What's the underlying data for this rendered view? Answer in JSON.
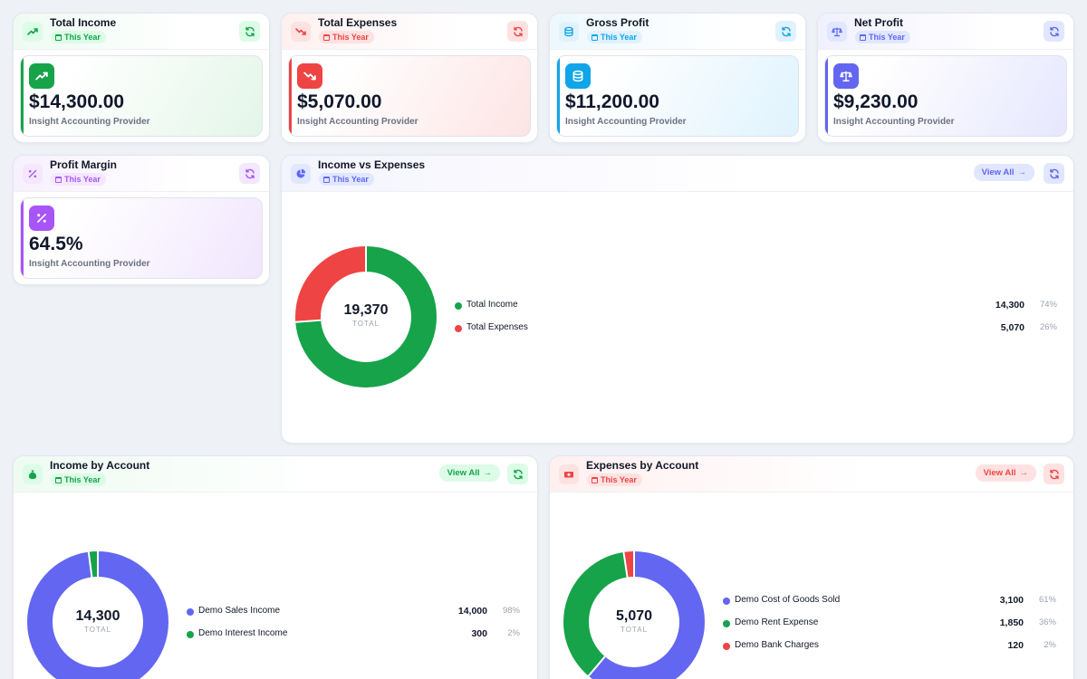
{
  "colors": {
    "green": "#16a34a",
    "red": "#ef4444",
    "blue": "#0ea5e9",
    "indigo": "#6366f1",
    "purple": "#a855f7"
  },
  "kpis": [
    {
      "title": "Total Income",
      "badge": "This Year",
      "value": "$14,300.00",
      "subtitle": "Insight Accounting Provider",
      "icon": "trending-up-icon"
    },
    {
      "title": "Total Expenses",
      "badge": "This Year",
      "value": "$5,070.00",
      "subtitle": "Insight Accounting Provider",
      "icon": "trending-down-icon"
    },
    {
      "title": "Gross Profit",
      "badge": "This Year",
      "value": "$11,200.00",
      "subtitle": "Insight Accounting Provider",
      "icon": "coins-icon"
    },
    {
      "title": "Net Profit",
      "badge": "This Year",
      "value": "$9,230.00",
      "subtitle": "Insight Accounting Provider",
      "icon": "scale-icon"
    },
    {
      "title": "Profit Margin",
      "badge": "This Year",
      "value": "64.5%",
      "subtitle": "Insight Accounting Provider",
      "icon": "percent-icon"
    }
  ],
  "income_vs_expenses": {
    "title": "Income vs Expenses",
    "badge": "This Year",
    "view_all": "View All",
    "icon": "pie-chart-icon",
    "total": "19,370",
    "total_label": "TOTAL",
    "items": [
      {
        "name": "Total Income",
        "value": "14,300",
        "pct": "74%",
        "amount": 14300,
        "color": "#16a34a"
      },
      {
        "name": "Total Expenses",
        "value": "5,070",
        "pct": "26%",
        "amount": 5070,
        "color": "#ef4444"
      }
    ]
  },
  "income_by_account": {
    "title": "Income by Account",
    "badge": "This Year",
    "view_all": "View All",
    "icon": "money-bag-icon",
    "total": "14,300",
    "total_label": "TOTAL",
    "items": [
      {
        "name": "Demo Sales Income",
        "value": "14,000",
        "pct": "98%",
        "amount": 14000,
        "color": "#6366f1"
      },
      {
        "name": "Demo Interest Income",
        "value": "300",
        "pct": "2%",
        "amount": 300,
        "color": "#16a34a"
      }
    ]
  },
  "expenses_by_account": {
    "title": "Expenses by Account",
    "badge": "This Year",
    "view_all": "View All",
    "icon": "cash-icon",
    "total": "5,070",
    "total_label": "TOTAL",
    "items": [
      {
        "name": "Demo Cost of Goods Sold",
        "value": "3,100",
        "pct": "61%",
        "amount": 3100,
        "color": "#6366f1"
      },
      {
        "name": "Demo Rent Expense",
        "value": "1,850",
        "pct": "36%",
        "amount": 1850,
        "color": "#16a34a"
      },
      {
        "name": "Demo Bank Charges",
        "value": "120",
        "pct": "2%",
        "amount": 120,
        "color": "#ef4444"
      }
    ]
  }
}
